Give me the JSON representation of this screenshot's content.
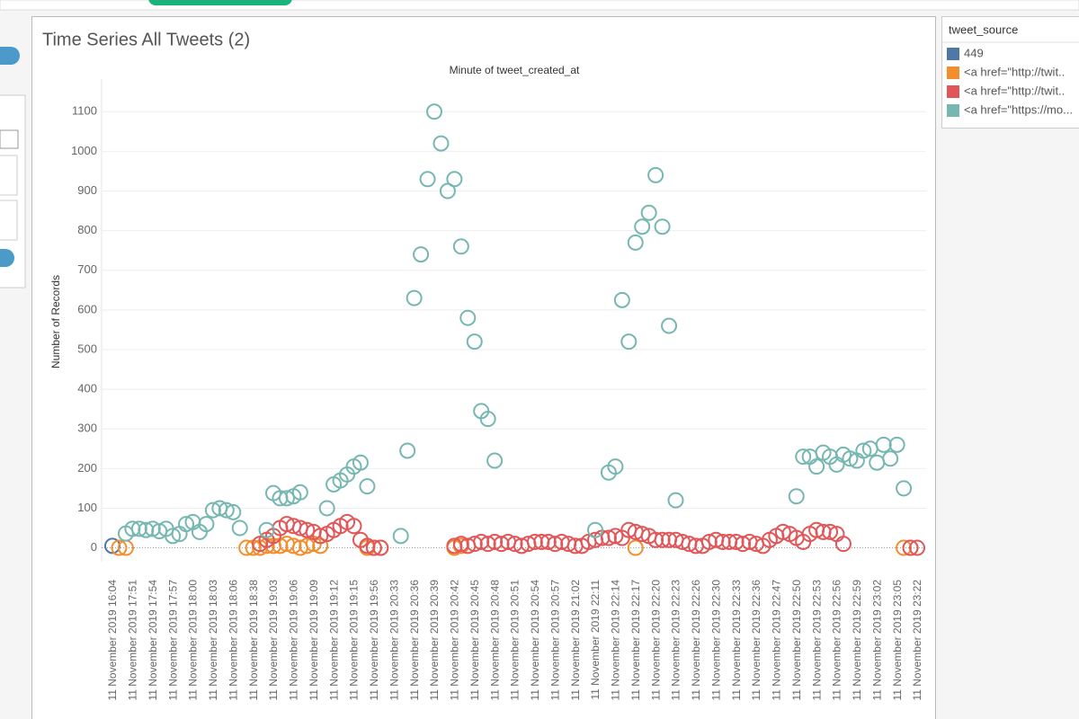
{
  "legend": {
    "title": "tweet_source"
  },
  "chart_data": {
    "type": "scatter",
    "title": "Time Series All Tweets (2)",
    "x_label": "Minute of tweet_created_at",
    "y_label": "Number of Records",
    "ylim": [
      -35,
      1180
    ],
    "yticks": [
      0,
      100,
      200,
      300,
      400,
      500,
      600,
      700,
      800,
      900,
      1000,
      1100
    ],
    "grid": true,
    "categories": [
      "11 November 2019 16:04",
      null,
      null,
      "11 November 2019 17:51",
      null,
      null,
      "11 November 2019 17:54",
      null,
      null,
      "11 November 2019 17:57",
      null,
      null,
      "11 November 2019 18:00",
      null,
      null,
      "11 November 2019 18:03",
      null,
      null,
      "11 November 2019 18:06",
      null,
      null,
      "11 November 2019 18:38",
      null,
      null,
      "11 November 2019 19:03",
      null,
      null,
      "11 November 2019 19:06",
      null,
      null,
      "11 November 2019 19:09",
      null,
      null,
      "11 November 2019 19:12",
      null,
      null,
      "11 November 2019 19:15",
      null,
      null,
      "11 November 2019 19:56",
      null,
      null,
      "11 November 2019 20:33",
      null,
      null,
      "11 November 2019 20:36",
      null,
      null,
      "11 November 2019 20:39",
      null,
      null,
      "11 November 2019 20:42",
      null,
      null,
      "11 November 2019 20:45",
      null,
      null,
      "11 November 2019 20:48",
      null,
      null,
      "11 November 2019 20:51",
      null,
      null,
      "11 November 2019 20:54",
      null,
      null,
      "11 November 2019 20:57",
      null,
      null,
      "11 November 2019 21:02",
      null,
      null,
      "11 November 2019 22:11",
      null,
      null,
      "11 November 2019 22:14",
      null,
      null,
      "11 November 2019 22:17",
      null,
      null,
      "11 November 2019 22:20",
      null,
      null,
      "11 November 2019 22:23",
      null,
      null,
      "11 November 2019 22:26",
      null,
      null,
      "11 November 2019 22:30",
      null,
      null,
      "11 November 2019 22:33",
      null,
      null,
      "11 November 2019 22:36",
      null,
      null,
      "11 November 2019 22:47",
      null,
      null,
      "11 November 2019 22:50",
      null,
      null,
      "11 November 2019 22:53",
      null,
      null,
      "11 November 2019 22:56",
      null,
      null,
      "11 November 2019 22:59",
      null,
      null,
      "11 November 2019 23:02",
      null,
      null,
      "11 November 2019 23:05",
      null,
      null,
      "11 November 2019 23:22"
    ],
    "series": [
      {
        "name": "449",
        "color": "#4e79a7",
        "values": [
          5,
          null,
          null,
          null,
          null,
          null,
          null,
          null,
          null,
          null,
          null,
          null,
          null,
          null,
          null,
          null,
          null,
          null,
          null,
          null,
          null,
          null,
          null,
          null,
          null,
          null,
          null,
          null,
          null,
          null,
          null,
          null,
          null,
          null,
          null,
          null,
          null,
          null,
          null,
          null,
          null,
          null,
          null,
          null,
          null,
          null,
          null,
          null,
          null,
          null,
          null,
          null,
          null,
          null,
          null,
          null,
          null,
          null,
          null,
          null,
          null,
          null,
          null,
          null,
          null,
          null,
          null,
          null,
          null,
          null,
          null,
          null,
          null,
          null,
          null,
          null,
          null,
          null,
          null,
          null,
          null,
          null,
          null,
          null,
          null,
          null,
          null,
          null,
          null,
          null,
          null,
          null,
          null,
          null,
          null,
          null,
          null,
          null,
          null,
          null,
          null,
          null,
          null,
          null,
          null,
          null,
          null,
          null,
          null,
          null,
          null,
          null,
          null,
          null,
          null,
          null,
          null,
          null,
          null,
          null,
          null
        ]
      },
      {
        "name": "<a href=\"http://twit..",
        "color": "#f28e2b",
        "values": [
          null,
          0,
          0,
          null,
          null,
          null,
          null,
          null,
          null,
          null,
          null,
          null,
          null,
          null,
          null,
          null,
          null,
          null,
          null,
          null,
          0,
          0,
          0,
          5,
          5,
          5,
          10,
          5,
          0,
          5,
          10,
          5,
          null,
          null,
          null,
          null,
          null,
          null,
          0,
          0,
          0,
          null,
          null,
          null,
          null,
          null,
          null,
          null,
          null,
          null,
          null,
          0,
          5,
          null,
          null,
          null,
          null,
          null,
          null,
          null,
          null,
          null,
          null,
          null,
          null,
          null,
          null,
          null,
          null,
          null,
          null,
          null,
          null,
          null,
          null,
          null,
          null,
          null,
          0,
          null,
          null,
          null,
          null,
          null,
          null,
          null,
          null,
          null,
          null,
          null,
          null,
          null,
          null,
          null,
          null,
          null,
          null,
          null,
          null,
          null,
          null,
          null,
          null,
          null,
          null,
          null,
          null,
          null,
          null,
          null,
          null,
          null,
          null,
          null,
          null,
          null,
          null,
          null,
          0,
          0,
          null
        ]
      },
      {
        "name": "<a href=\"http://twit..",
        "color": "#e15759",
        "values": [
          null,
          null,
          null,
          null,
          null,
          null,
          null,
          null,
          null,
          null,
          null,
          null,
          null,
          null,
          null,
          null,
          null,
          null,
          null,
          null,
          null,
          null,
          10,
          20,
          30,
          50,
          60,
          55,
          50,
          45,
          40,
          30,
          35,
          45,
          55,
          65,
          55,
          20,
          5,
          0,
          0,
          null,
          null,
          null,
          null,
          null,
          null,
          null,
          null,
          null,
          null,
          5,
          10,
          5,
          10,
          15,
          10,
          15,
          10,
          15,
          10,
          5,
          10,
          15,
          15,
          15,
          10,
          15,
          10,
          5,
          5,
          15,
          20,
          25,
          25,
          30,
          25,
          45,
          40,
          35,
          30,
          20,
          20,
          20,
          20,
          15,
          10,
          5,
          5,
          15,
          20,
          15,
          15,
          15,
          10,
          15,
          10,
          5,
          20,
          30,
          40,
          35,
          25,
          15,
          35,
          45,
          40,
          40,
          35,
          10,
          null,
          null,
          null,
          null,
          null,
          null,
          null,
          null,
          null,
          0,
          0
        ]
      },
      {
        "name": "<a href=\"https://mo...",
        "color": "#76b7b2",
        "values": [
          null,
          null,
          36,
          48,
          48,
          45,
          48,
          42,
          48,
          30,
          35,
          60,
          65,
          40,
          60,
          95,
          100,
          95,
          90,
          50,
          null,
          null,
          null,
          45,
          138,
          125,
          125,
          130,
          140,
          null,
          null,
          null,
          100,
          160,
          170,
          185,
          205,
          215,
          155,
          null,
          null,
          null,
          null,
          30,
          245,
          630,
          740,
          930,
          1100,
          1020,
          900,
          930,
          760,
          580,
          520,
          345,
          325,
          220,
          null,
          null,
          null,
          null,
          null,
          null,
          null,
          null,
          null,
          null,
          null,
          null,
          null,
          null,
          45,
          null,
          190,
          205,
          625,
          520,
          770,
          810,
          845,
          940,
          810,
          560,
          120,
          null,
          null,
          null,
          null,
          null,
          null,
          null,
          null,
          null,
          null,
          null,
          null,
          null,
          null,
          null,
          null,
          null,
          130,
          230,
          230,
          205,
          240,
          230,
          210,
          235,
          225,
          220,
          245,
          250,
          215,
          260,
          225,
          260,
          150,
          null,
          null
        ]
      }
    ]
  }
}
